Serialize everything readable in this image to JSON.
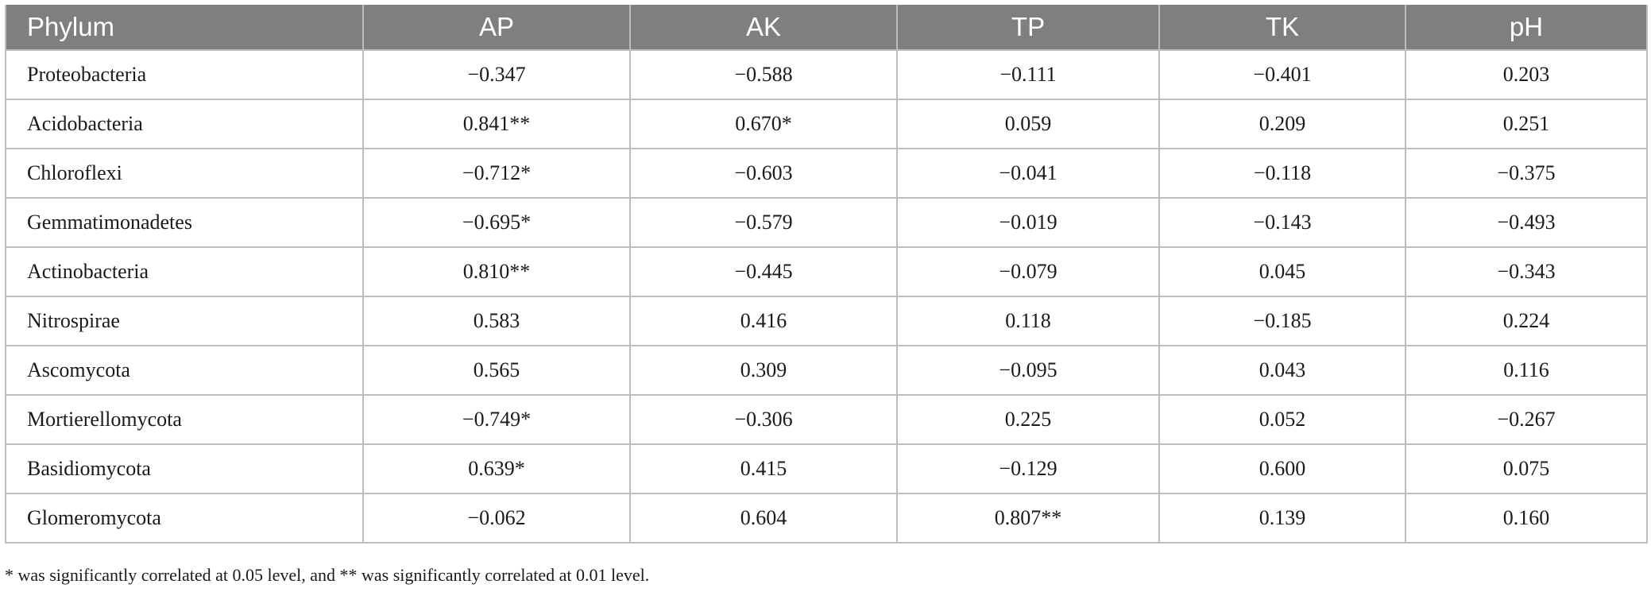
{
  "table": {
    "headers": [
      "Phylum",
      "AP",
      "AK",
      "TP",
      "TK",
      "pH"
    ],
    "rows": [
      [
        "Proteobacteria",
        "−0.347",
        "−0.588",
        "−0.111",
        "−0.401",
        "0.203"
      ],
      [
        "Acidobacteria",
        "0.841**",
        "0.670*",
        "0.059",
        "0.209",
        "0.251"
      ],
      [
        "Chloroflexi",
        "−0.712*",
        "−0.603",
        "−0.041",
        "−0.118",
        "−0.375"
      ],
      [
        "Gemmatimonadetes",
        "−0.695*",
        "−0.579",
        "−0.019",
        "−0.143",
        "−0.493"
      ],
      [
        "Actinobacteria",
        "0.810**",
        "−0.445",
        "−0.079",
        "0.045",
        "−0.343"
      ],
      [
        "Nitrospirae",
        "0.583",
        "0.416",
        "0.118",
        "−0.185",
        "0.224"
      ],
      [
        "Ascomycota",
        "0.565",
        "0.309",
        "−0.095",
        "0.043",
        "0.116"
      ],
      [
        "Mortierellomycota",
        "−0.749*",
        "−0.306",
        "0.225",
        "0.052",
        "−0.267"
      ],
      [
        "Basidiomycota",
        "0.639*",
        "0.415",
        "−0.129",
        "0.600",
        "0.075"
      ],
      [
        "Glomeromycota",
        "−0.062",
        "0.604",
        "0.807**",
        "0.139",
        "0.160"
      ]
    ]
  },
  "footnote": "* was significantly correlated at 0.05 level, and ** was significantly correlated at 0.01 level.",
  "colors": {
    "header_bg": "#7f7f7f",
    "header_text": "#ffffff",
    "grid": "#bdbdbd",
    "body_text": "#1a1a1a"
  }
}
